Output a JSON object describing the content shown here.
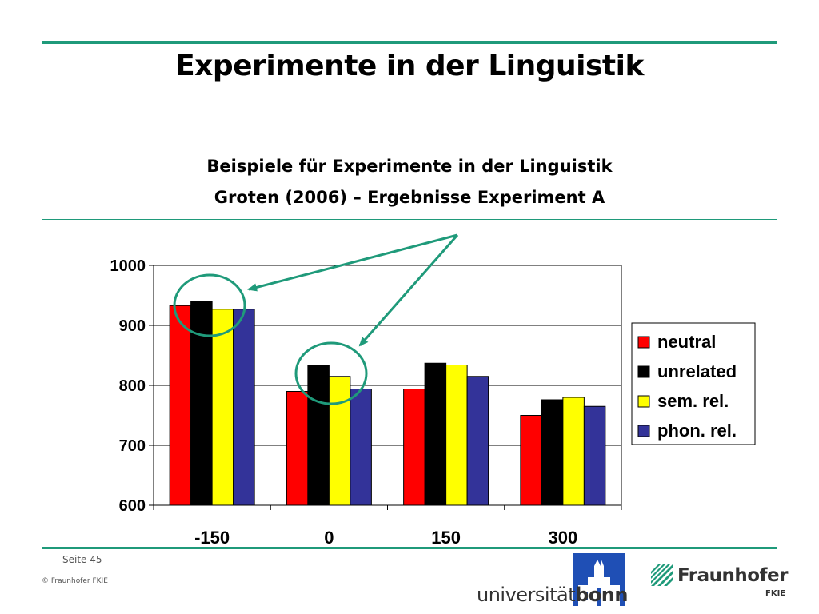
{
  "slide": {
    "title": "Experimente in der Linguistik",
    "subtitle_line1": "Beispiele für Experimente in der Linguistik",
    "subtitle_line2": "Groten (2006) – Ergebnisse Experiment A",
    "page_number": "Seite 45",
    "copyright": "© Fraunhofer FKIE"
  },
  "logos": {
    "bonn_prefix": "universität",
    "bonn_bold": "bonn",
    "fraunhofer_name": "Fraunhofer",
    "fraunhofer_sub": "FKIE"
  },
  "colors": {
    "accent_rule": "#1f9a7a",
    "bonn_blue": "#1f4fb5",
    "annotation": "#1f9a7a"
  },
  "chart_data": {
    "type": "bar",
    "categories": [
      "-150",
      "0",
      "150",
      "300"
    ],
    "series": [
      {
        "name": "neutral",
        "color": "#ff0000",
        "values": [
          933,
          790,
          794,
          750
        ]
      },
      {
        "name": "unrelated",
        "color": "#000000",
        "values": [
          940,
          834,
          837,
          776
        ]
      },
      {
        "name": "sem. rel.",
        "color": "#ffff00",
        "values": [
          927,
          815,
          834,
          780
        ]
      },
      {
        "name": "phon. rel.",
        "color": "#333399",
        "values": [
          927,
          794,
          815,
          765
        ]
      }
    ],
    "ylim": [
      600,
      1000
    ],
    "yticks": [
      600,
      700,
      800,
      900,
      1000
    ],
    "grid": true,
    "legend": "right",
    "annotations": "two circles around the first category and the 0 category, connected by arrows from a common point"
  }
}
